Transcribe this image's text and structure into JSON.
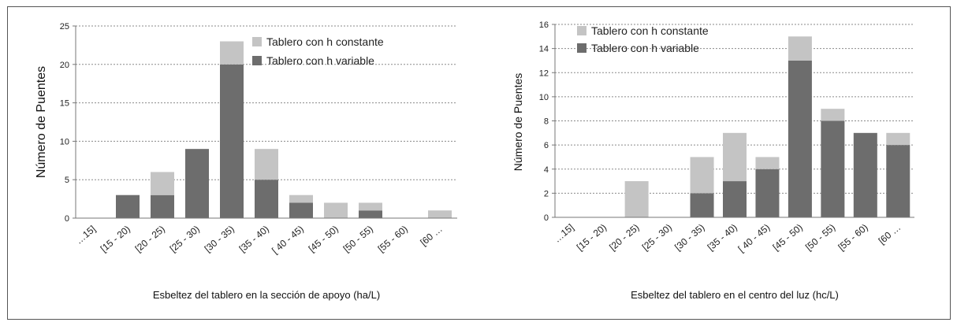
{
  "chart_data": [
    {
      "type": "bar",
      "stacked": true,
      "categories": [
        "…15]",
        "[15 - 20)",
        "[20 - 25)",
        "[25 - 30)",
        "[30 - 35)",
        "[35 - 40)",
        "[ 40 - 45)",
        "[45 - 50)",
        "[50 - 55)",
        "[55 - 60)",
        "[60 …"
      ],
      "series": [
        {
          "name": "Tablero con h variable",
          "values": [
            0,
            3,
            3,
            9,
            20,
            5,
            2,
            0,
            1,
            0,
            0
          ],
          "color": "#6d6d6d"
        },
        {
          "name": "Tablero con h constante",
          "values": [
            0,
            0,
            3,
            0,
            3,
            4,
            1,
            2,
            1,
            0,
            1
          ],
          "color": "#c4c4c4"
        }
      ],
      "xlabel": "Esbeltez del tablero en la sección de apoyo (ha/L)",
      "ylabel": "Número de Puentes",
      "ylim": [
        0,
        25
      ],
      "yticks": [
        0,
        5,
        10,
        15,
        20,
        25
      ],
      "grid": true,
      "legend": "top-right"
    },
    {
      "type": "bar",
      "stacked": true,
      "categories": [
        "…15]",
        "[15 - 20)",
        "[20 - 25)",
        "[25 - 30)",
        "[30 - 35)",
        "[35 - 40)",
        "[ 40 - 45)",
        "[45 - 50)",
        "[50 - 55)",
        "[55 - 60)",
        "[60 …"
      ],
      "series": [
        {
          "name": "Tablero con h variable",
          "values": [
            0,
            0,
            0,
            0,
            2,
            3,
            4,
            13,
            8,
            7,
            6
          ],
          "color": "#6d6d6d"
        },
        {
          "name": "Tablero con h constante",
          "values": [
            0,
            0,
            3,
            0,
            3,
            4,
            1,
            2,
            1,
            0,
            1
          ],
          "color": "#c4c4c4"
        }
      ],
      "xlabel": "Esbeltez del tablero en el centro del luz (hc/L)",
      "ylabel": "Número de Puentes",
      "ylim": [
        0,
        16
      ],
      "yticks": [
        0,
        2,
        4,
        6,
        8,
        10,
        12,
        14,
        16
      ],
      "grid": true,
      "legend": "top-left"
    }
  ]
}
